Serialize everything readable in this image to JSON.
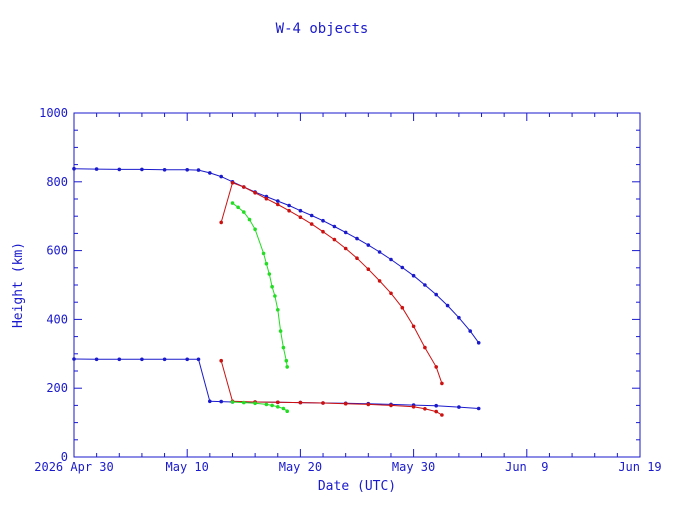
{
  "chart_data": {
    "type": "scatter",
    "title": "W-4 objects",
    "xlabel": "Date (UTC)",
    "ylabel": "Height (km)",
    "x_ticks": [
      "2026 Apr 30",
      "May 10",
      "May 20",
      "May 30",
      "Jun  9",
      "Jun 19"
    ],
    "y_ticks": [
      "0",
      "200",
      "400",
      "600",
      "800",
      "1000"
    ],
    "xlim": [
      "2026-04-30",
      "2026-06-19"
    ],
    "ylim": [
      0,
      1000
    ],
    "grid": false,
    "colors": {
      "axes": "#1a1acc",
      "blue": "#1a1acc",
      "red": "#cc1111",
      "green": "#22dd22"
    },
    "series": [
      {
        "color": "blue",
        "points": [
          [
            "2026-04-30",
            838
          ],
          [
            "2026-05-02",
            837
          ],
          [
            "2026-05-04",
            836
          ],
          [
            "2026-05-06",
            836
          ],
          [
            "2026-05-08",
            835
          ],
          [
            "2026-05-10",
            835
          ],
          [
            "2026-05-11",
            834
          ],
          [
            "2026-05-12",
            826
          ],
          [
            "2026-05-13",
            815
          ],
          [
            "2026-05-14",
            800
          ],
          [
            "2026-05-15",
            785
          ],
          [
            "2026-05-16",
            770
          ],
          [
            "2026-05-17",
            757
          ],
          [
            "2026-05-18",
            744
          ],
          [
            "2026-05-19",
            731
          ],
          [
            "2026-05-20",
            716
          ],
          [
            "2026-05-21",
            702
          ],
          [
            "2026-05-22",
            687
          ],
          [
            "2026-05-23",
            670
          ],
          [
            "2026-05-24",
            653
          ],
          [
            "2026-05-25",
            635
          ],
          [
            "2026-05-26",
            616
          ],
          [
            "2026-05-27",
            596
          ],
          [
            "2026-05-28",
            574
          ],
          [
            "2026-05-29",
            551
          ],
          [
            "2026-05-30",
            527
          ],
          [
            "2026-05-31",
            500
          ],
          [
            "2026-06-01",
            472
          ],
          [
            "2026-06-02",
            440
          ],
          [
            "2026-06-03",
            405
          ],
          [
            "2026-06-04",
            366
          ],
          [
            "2026-06-04T18:00",
            332
          ]
        ]
      },
      {
        "color": "blue",
        "points": [
          [
            "2026-04-30",
            285
          ],
          [
            "2026-05-02",
            284
          ],
          [
            "2026-05-04",
            284
          ],
          [
            "2026-05-06",
            284
          ],
          [
            "2026-05-08",
            284
          ],
          [
            "2026-05-10",
            284
          ],
          [
            "2026-05-11",
            284
          ],
          [
            "2026-05-12",
            162
          ],
          [
            "2026-05-13",
            161
          ],
          [
            "2026-05-14",
            160
          ],
          [
            "2026-05-16",
            160
          ],
          [
            "2026-05-18",
            159
          ],
          [
            "2026-05-20",
            158
          ],
          [
            "2026-05-22",
            157
          ],
          [
            "2026-05-24",
            156
          ],
          [
            "2026-05-26",
            155
          ],
          [
            "2026-05-28",
            153
          ],
          [
            "2026-05-30",
            151
          ],
          [
            "2026-06-01",
            149
          ],
          [
            "2026-06-03",
            145
          ],
          [
            "2026-06-04T18:00",
            141
          ]
        ]
      },
      {
        "color": "red",
        "points": [
          [
            "2026-05-13",
            682
          ],
          [
            "2026-05-14",
            797
          ],
          [
            "2026-05-15",
            785
          ],
          [
            "2026-05-16",
            768
          ],
          [
            "2026-05-17",
            751
          ],
          [
            "2026-05-18",
            734
          ],
          [
            "2026-05-19",
            716
          ],
          [
            "2026-05-20",
            697
          ],
          [
            "2026-05-21",
            677
          ],
          [
            "2026-05-22",
            655
          ],
          [
            "2026-05-23",
            632
          ],
          [
            "2026-05-24",
            606
          ],
          [
            "2026-05-25",
            578
          ],
          [
            "2026-05-26",
            546
          ],
          [
            "2026-05-27",
            512
          ],
          [
            "2026-05-28",
            476
          ],
          [
            "2026-05-29",
            434
          ],
          [
            "2026-05-30",
            380
          ],
          [
            "2026-05-31",
            318
          ],
          [
            "2026-06-01",
            262
          ],
          [
            "2026-06-01T12:00",
            214
          ]
        ]
      },
      {
        "color": "red",
        "points": [
          [
            "2026-05-13",
            280
          ],
          [
            "2026-05-14",
            162
          ],
          [
            "2026-05-16",
            160
          ],
          [
            "2026-05-18",
            159
          ],
          [
            "2026-05-20",
            158
          ],
          [
            "2026-05-22",
            157
          ],
          [
            "2026-05-24",
            155
          ],
          [
            "2026-05-26",
            153
          ],
          [
            "2026-05-28",
            150
          ],
          [
            "2026-05-30",
            146
          ],
          [
            "2026-05-31",
            140
          ],
          [
            "2026-06-01",
            132
          ],
          [
            "2026-06-01T12:00",
            122
          ]
        ]
      },
      {
        "color": "green",
        "points": [
          [
            "2026-05-14",
            738
          ],
          [
            "2026-05-14T12:00",
            726
          ],
          [
            "2026-05-15",
            712
          ],
          [
            "2026-05-15T12:00",
            690
          ],
          [
            "2026-05-16",
            662
          ],
          [
            "2026-05-16T18:00",
            592
          ],
          [
            "2026-05-17",
            562
          ],
          [
            "2026-05-17T06:00",
            532
          ],
          [
            "2026-05-17T12:00",
            495
          ],
          [
            "2026-05-17T18:00",
            468
          ],
          [
            "2026-05-18",
            428
          ],
          [
            "2026-05-18T06:00",
            366
          ],
          [
            "2026-05-18T12:00",
            318
          ],
          [
            "2026-05-18T18:00",
            280
          ],
          [
            "2026-05-18T20:00",
            262
          ]
        ]
      },
      {
        "color": "green",
        "points": [
          [
            "2026-05-14",
            160
          ],
          [
            "2026-05-15",
            158
          ],
          [
            "2026-05-16",
            156
          ],
          [
            "2026-05-17",
            153
          ],
          [
            "2026-05-17T12:00",
            150
          ],
          [
            "2026-05-18",
            146
          ],
          [
            "2026-05-18T12:00",
            141
          ],
          [
            "2026-05-18T20:00",
            133
          ]
        ]
      }
    ]
  }
}
